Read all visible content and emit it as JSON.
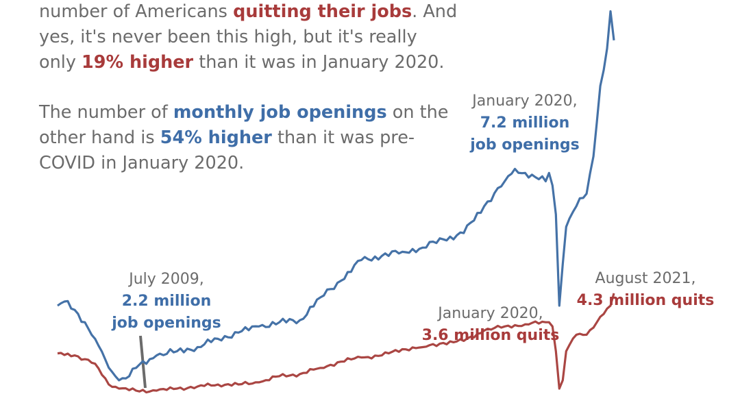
{
  "text": {
    "p1": {
      "a": "number of Americans ",
      "quitting": "quitting their jobs",
      "b": ". And",
      "c": "yes, it's never been this high, but it's really",
      "d": "only ",
      "pct": "19% higher",
      "e": " than it was in January 2020."
    },
    "p2": {
      "a": "The number of ",
      "openings": "monthly job openings",
      "b": " on the",
      "c": "other hand is ",
      "pct": "54% higher",
      "d": " than it was pre-",
      "e": "COVID in January 2020."
    }
  },
  "annotations": {
    "jul2009": {
      "date": "July 2009,",
      "value": "2.2 million",
      "label": "job openings"
    },
    "jan2020_open": {
      "date": "January 2020,",
      "value": "7.2 million",
      "label": "job openings"
    },
    "jan2020_quit": {
      "date": "January 2020,",
      "value": "3.6 million quits"
    },
    "aug2021": {
      "date": "August 2021,",
      "value": "4.3 million quits"
    }
  },
  "colors": {
    "openings": "#4572a7",
    "quits": "#aa4643",
    "leader": "#6b6b6b"
  },
  "chart_data": {
    "type": "line",
    "x_start": "2008-01",
    "x_end": "2021-08",
    "x_step": "month",
    "series": [
      {
        "name": "job openings",
        "unit": "millions",
        "anchors": [
          [
            "2008-01",
            4.0
          ],
          [
            "2008-03",
            4.1
          ],
          [
            "2008-06",
            3.9
          ],
          [
            "2008-09",
            3.6
          ],
          [
            "2008-12",
            3.2
          ],
          [
            "2009-03",
            2.7
          ],
          [
            "2009-05",
            2.4
          ],
          [
            "2009-07",
            2.2
          ],
          [
            "2009-10",
            2.3
          ],
          [
            "2009-12",
            2.5
          ],
          [
            "2010-06",
            2.8
          ],
          [
            "2010-12",
            2.9
          ],
          [
            "2011-06",
            3.0
          ],
          [
            "2011-12",
            3.2
          ],
          [
            "2012-06",
            3.35
          ],
          [
            "2012-12",
            3.5
          ],
          [
            "2013-06",
            3.6
          ],
          [
            "2013-12",
            3.65
          ],
          [
            "2014-06",
            4.2
          ],
          [
            "2014-12",
            4.6
          ],
          [
            "2015-06",
            5.1
          ],
          [
            "2015-12",
            5.2
          ],
          [
            "2016-06",
            5.3
          ],
          [
            "2016-12",
            5.4
          ],
          [
            "2017-06",
            5.6
          ],
          [
            "2017-12",
            5.75
          ],
          [
            "2018-06",
            6.4
          ],
          [
            "2018-12",
            7.0
          ],
          [
            "2019-03",
            7.3
          ],
          [
            "2019-06",
            7.2
          ],
          [
            "2019-09",
            7.1
          ],
          [
            "2019-12",
            7.0
          ],
          [
            "2020-01",
            7.2
          ],
          [
            "2020-02",
            6.9
          ],
          [
            "2020-03",
            6.2
          ],
          [
            "2020-04",
            4.0
          ],
          [
            "2020-05",
            5.0
          ],
          [
            "2020-06",
            5.9
          ],
          [
            "2020-09",
            6.4
          ],
          [
            "2020-12",
            6.7
          ],
          [
            "2021-02",
            7.6
          ],
          [
            "2021-04",
            9.3
          ],
          [
            "2021-06",
            10.2
          ],
          [
            "2021-07",
            11.1
          ],
          [
            "2021-08",
            10.4
          ]
        ]
      },
      {
        "name": "quits",
        "unit": "millions",
        "anchors": [
          [
            "2008-01",
            2.85
          ],
          [
            "2008-06",
            2.8
          ],
          [
            "2008-12",
            2.6
          ],
          [
            "2009-04",
            2.1
          ],
          [
            "2009-07",
            2.0
          ],
          [
            "2009-12",
            1.95
          ],
          [
            "2010-06",
            1.95
          ],
          [
            "2010-12",
            2.0
          ],
          [
            "2011-06",
            2.05
          ],
          [
            "2011-12",
            2.1
          ],
          [
            "2012-06",
            2.1
          ],
          [
            "2012-12",
            2.15
          ],
          [
            "2013-06",
            2.3
          ],
          [
            "2013-12",
            2.35
          ],
          [
            "2014-06",
            2.5
          ],
          [
            "2014-12",
            2.65
          ],
          [
            "2015-06",
            2.75
          ],
          [
            "2015-12",
            2.8
          ],
          [
            "2016-06",
            2.95
          ],
          [
            "2016-12",
            3.0
          ],
          [
            "2017-06",
            3.1
          ],
          [
            "2017-12",
            3.15
          ],
          [
            "2018-06",
            3.4
          ],
          [
            "2018-12",
            3.5
          ],
          [
            "2019-06",
            3.55
          ],
          [
            "2019-12",
            3.6
          ],
          [
            "2020-01",
            3.6
          ],
          [
            "2020-02",
            3.5
          ],
          [
            "2020-03",
            2.9
          ],
          [
            "2020-04",
            2.0
          ],
          [
            "2020-05",
            2.2
          ],
          [
            "2020-06",
            2.9
          ],
          [
            "2020-09",
            3.3
          ],
          [
            "2020-12",
            3.3
          ],
          [
            "2021-03",
            3.6
          ],
          [
            "2021-05",
            3.8
          ],
          [
            "2021-07",
            4.0
          ],
          [
            "2021-08",
            4.3
          ]
        ]
      }
    ],
    "highlights": [
      {
        "series": "job openings",
        "x": "2009-07",
        "y": 2.2
      },
      {
        "series": "job openings",
        "x": "2020-01",
        "y": 7.2
      },
      {
        "series": "quits",
        "x": "2020-01",
        "y": 3.6
      },
      {
        "series": "quits",
        "x": "2021-08",
        "y": 4.3
      }
    ]
  }
}
